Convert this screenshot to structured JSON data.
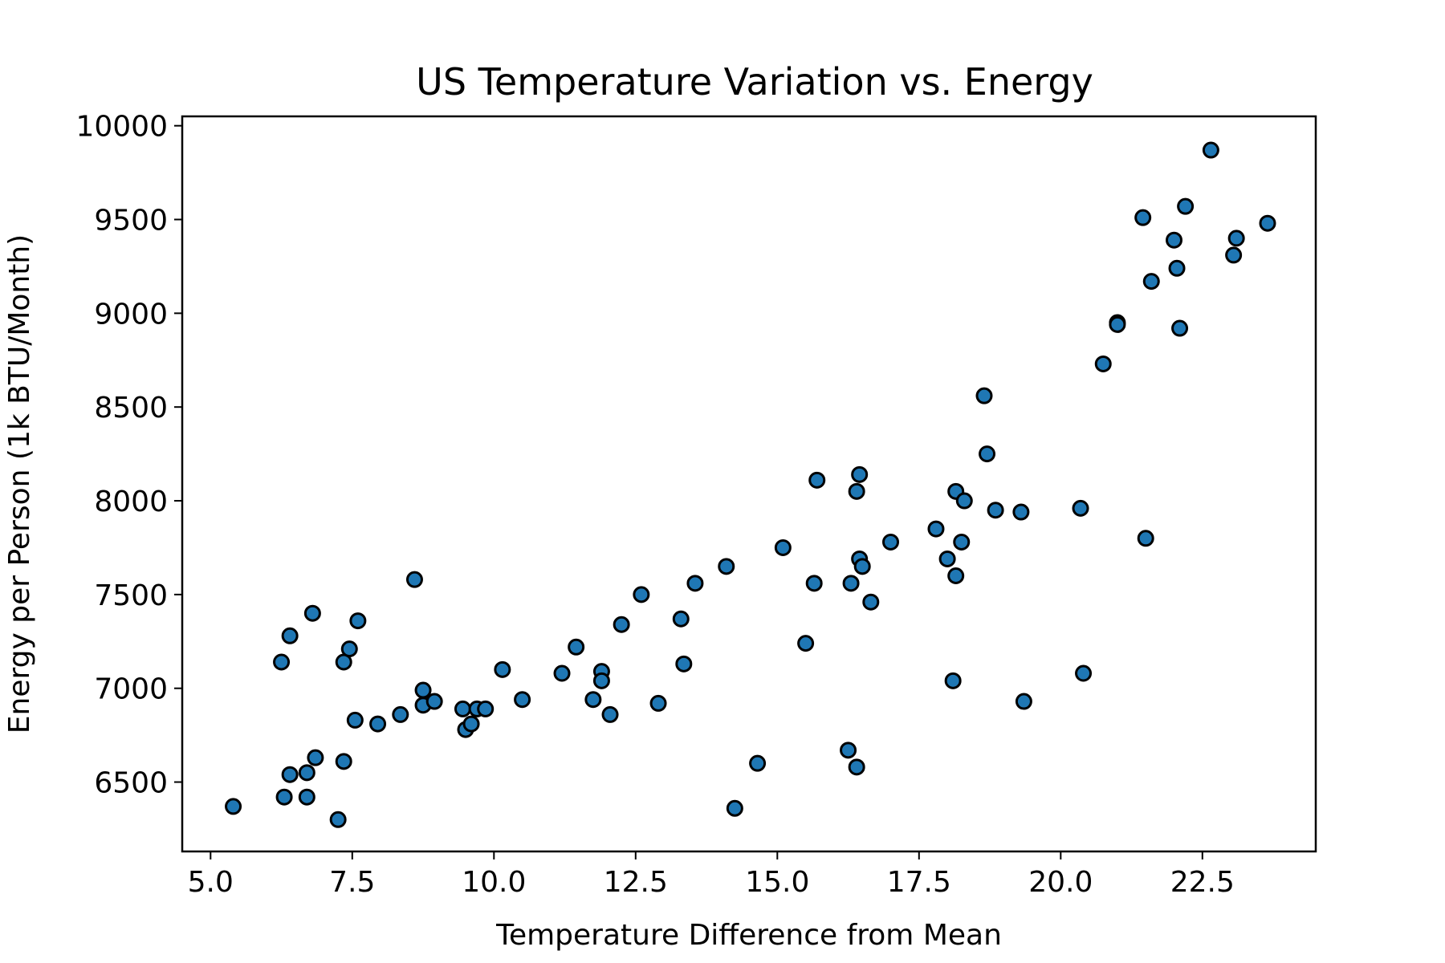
{
  "chart_data": {
    "type": "scatter",
    "title": "US Temperature Variation vs. Energy",
    "xlabel": "Temperature Difference from Mean",
    "ylabel": "Energy per Person (1k BTU/Month)",
    "xlim": [
      4.5,
      24.5
    ],
    "ylim": [
      6130,
      10050
    ],
    "x_ticks": [
      5.0,
      7.5,
      10.0,
      12.5,
      15.0,
      17.5,
      20.0,
      22.5
    ],
    "x_tick_labels": [
      "5.0",
      "7.5",
      "10.0",
      "12.5",
      "15.0",
      "17.5",
      "20.0",
      "22.5"
    ],
    "y_ticks": [
      6500,
      7000,
      7500,
      8000,
      8500,
      9000,
      9500,
      10000
    ],
    "y_tick_labels": [
      "6500",
      "7000",
      "7500",
      "8000",
      "8500",
      "9000",
      "9500",
      "10000"
    ],
    "grid": false,
    "marker_color": "#1f77b4",
    "marker_edge_color": "#000000",
    "points": [
      {
        "x": 5.4,
        "y": 6370
      },
      {
        "x": 6.25,
        "y": 7140
      },
      {
        "x": 6.3,
        "y": 6420
      },
      {
        "x": 6.4,
        "y": 7280
      },
      {
        "x": 6.4,
        "y": 6540
      },
      {
        "x": 6.7,
        "y": 6550
      },
      {
        "x": 6.7,
        "y": 6420
      },
      {
        "x": 6.8,
        "y": 7400
      },
      {
        "x": 6.85,
        "y": 6630
      },
      {
        "x": 7.25,
        "y": 6300
      },
      {
        "x": 7.35,
        "y": 7140
      },
      {
        "x": 7.35,
        "y": 6610
      },
      {
        "x": 7.45,
        "y": 7210
      },
      {
        "x": 7.55,
        "y": 6830
      },
      {
        "x": 7.6,
        "y": 7360
      },
      {
        "x": 7.95,
        "y": 6810
      },
      {
        "x": 8.35,
        "y": 6860
      },
      {
        "x": 8.6,
        "y": 7580
      },
      {
        "x": 8.75,
        "y": 6990
      },
      {
        "x": 8.75,
        "y": 6910
      },
      {
        "x": 8.95,
        "y": 6930
      },
      {
        "x": 9.45,
        "y": 6890
      },
      {
        "x": 9.5,
        "y": 6780
      },
      {
        "x": 9.6,
        "y": 6810
      },
      {
        "x": 9.7,
        "y": 6890
      },
      {
        "x": 9.85,
        "y": 6890
      },
      {
        "x": 10.15,
        "y": 7100
      },
      {
        "x": 10.5,
        "y": 6940
      },
      {
        "x": 11.2,
        "y": 7080
      },
      {
        "x": 11.45,
        "y": 7220
      },
      {
        "x": 11.75,
        "y": 6940
      },
      {
        "x": 11.9,
        "y": 7090
      },
      {
        "x": 11.9,
        "y": 7040
      },
      {
        "x": 12.05,
        "y": 6860
      },
      {
        "x": 12.25,
        "y": 7340
      },
      {
        "x": 12.6,
        "y": 7500
      },
      {
        "x": 12.9,
        "y": 6920
      },
      {
        "x": 13.3,
        "y": 7370
      },
      {
        "x": 13.35,
        "y": 7130
      },
      {
        "x": 13.55,
        "y": 7560
      },
      {
        "x": 14.1,
        "y": 7650
      },
      {
        "x": 14.25,
        "y": 6360
      },
      {
        "x": 14.65,
        "y": 6600
      },
      {
        "x": 15.1,
        "y": 7750
      },
      {
        "x": 15.5,
        "y": 7240
      },
      {
        "x": 15.65,
        "y": 7560
      },
      {
        "x": 15.7,
        "y": 8110
      },
      {
        "x": 16.25,
        "y": 6670
      },
      {
        "x": 16.3,
        "y": 7560
      },
      {
        "x": 16.4,
        "y": 8050
      },
      {
        "x": 16.4,
        "y": 6580
      },
      {
        "x": 16.45,
        "y": 8140
      },
      {
        "x": 16.45,
        "y": 7690
      },
      {
        "x": 16.5,
        "y": 7650
      },
      {
        "x": 16.65,
        "y": 7460
      },
      {
        "x": 17.0,
        "y": 7780
      },
      {
        "x": 17.8,
        "y": 7850
      },
      {
        "x": 18.0,
        "y": 7690
      },
      {
        "x": 18.1,
        "y": 7040
      },
      {
        "x": 18.15,
        "y": 8050
      },
      {
        "x": 18.15,
        "y": 7600
      },
      {
        "x": 18.25,
        "y": 7780
      },
      {
        "x": 18.3,
        "y": 8000
      },
      {
        "x": 18.65,
        "y": 8560
      },
      {
        "x": 18.7,
        "y": 8250
      },
      {
        "x": 18.85,
        "y": 7950
      },
      {
        "x": 19.3,
        "y": 7940
      },
      {
        "x": 19.35,
        "y": 6930
      },
      {
        "x": 20.35,
        "y": 7960
      },
      {
        "x": 20.4,
        "y": 7080
      },
      {
        "x": 20.75,
        "y": 8730
      },
      {
        "x": 21.0,
        "y": 8950
      },
      {
        "x": 21.0,
        "y": 8940
      },
      {
        "x": 21.45,
        "y": 9510
      },
      {
        "x": 21.5,
        "y": 7800
      },
      {
        "x": 21.6,
        "y": 9170
      },
      {
        "x": 22.0,
        "y": 9390
      },
      {
        "x": 22.05,
        "y": 9240
      },
      {
        "x": 22.1,
        "y": 8920
      },
      {
        "x": 22.2,
        "y": 9570
      },
      {
        "x": 22.65,
        "y": 9870
      },
      {
        "x": 23.05,
        "y": 9310
      },
      {
        "x": 23.1,
        "y": 9400
      },
      {
        "x": 23.65,
        "y": 9480
      }
    ]
  }
}
